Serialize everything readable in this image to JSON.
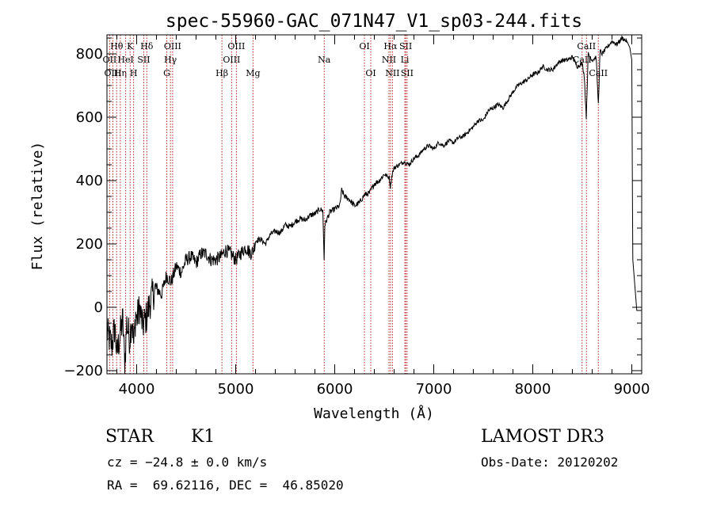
{
  "chart_data": {
    "type": "line",
    "title": "spec-55960-GAC_071N47_V1_sp03-244.fits",
    "xlabel": "Wavelength (Å)",
    "ylabel": "Flux (relative)",
    "xlim": [
      3700,
      9100
    ],
    "ylim": [
      -210,
      860
    ],
    "x_ticks": [
      4000,
      5000,
      6000,
      7000,
      8000,
      9000
    ],
    "x_tick_labels": [
      "4000",
      "5000",
      "6000",
      "7000",
      "8000",
      "9000"
    ],
    "y_ticks": [
      -200,
      0,
      200,
      400,
      600,
      800
    ],
    "y_tick_labels": [
      "−200",
      "0",
      "200",
      "400",
      "600",
      "800"
    ],
    "series": [
      {
        "name": "spectrum",
        "x": [
          3700,
          3750,
          3780,
          3800,
          3830,
          3860,
          3880,
          3900,
          3930,
          3950,
          3970,
          3990,
          4000,
          4030,
          4060,
          4100,
          4130,
          4160,
          4200,
          4250,
          4300,
          4350,
          4400,
          4450,
          4500,
          4550,
          4600,
          4650,
          4700,
          4750,
          4800,
          4850,
          4900,
          4950,
          5000,
          5050,
          5100,
          5150,
          5180,
          5200,
          5250,
          5300,
          5350,
          5400,
          5450,
          5500,
          5550,
          5600,
          5650,
          5700,
          5750,
          5800,
          5850,
          5880,
          5893,
          5900,
          5950,
          6000,
          6050,
          6070,
          6100,
          6150,
          6200,
          6250,
          6300,
          6350,
          6400,
          6450,
          6500,
          6550,
          6562,
          6580,
          6600,
          6650,
          6700,
          6750,
          6800,
          6850,
          6900,
          6950,
          7000,
          7050,
          7100,
          7150,
          7200,
          7250,
          7300,
          7350,
          7400,
          7450,
          7500,
          7550,
          7600,
          7650,
          7700,
          7750,
          7800,
          7850,
          7900,
          7950,
          8000,
          8050,
          8100,
          8150,
          8200,
          8250,
          8300,
          8350,
          8400,
          8450,
          8500,
          8520,
          8540,
          8560,
          8580,
          8600,
          8640,
          8662,
          8680,
          8700,
          8750,
          8800,
          8850,
          8900,
          8950,
          8980,
          9000,
          9010,
          9050,
          9100
        ],
        "y": [
          -80,
          -120,
          -60,
          -150,
          -90,
          -40,
          -180,
          -50,
          -100,
          -30,
          -120,
          -20,
          -40,
          0,
          -60,
          -30,
          10,
          40,
          60,
          40,
          100,
          80,
          130,
          110,
          150,
          160,
          140,
          170,
          170,
          150,
          150,
          160,
          180,
          170,
          150,
          170,
          190,
          170,
          180,
          210,
          215,
          200,
          230,
          240,
          235,
          260,
          255,
          270,
          280,
          275,
          290,
          295,
          310,
          305,
          150,
          260,
          300,
          310,
          320,
          370,
          350,
          340,
          320,
          330,
          355,
          360,
          390,
          400,
          420,
          410,
          380,
          420,
          440,
          450,
          460,
          450,
          470,
          480,
          500,
          510,
          500,
          520,
          510,
          525,
          520,
          535,
          540,
          555,
          570,
          590,
          590,
          620,
          630,
          640,
          630,
          655,
          680,
          700,
          710,
          720,
          735,
          740,
          760,
          750,
          750,
          770,
          780,
          780,
          790,
          760,
          770,
          730,
          600,
          800,
          790,
          780,
          790,
          640,
          810,
          800,
          820,
          840,
          830,
          850,
          840,
          820,
          780,
          150,
          -10,
          -10
        ],
        "color": "#000000"
      }
    ],
    "line_markers": [
      {
        "label": "Hθ",
        "wavelength": 3798,
        "row": 1
      },
      {
        "label": "OII",
        "wavelength": 3727,
        "row": 2
      },
      {
        "label": "OIII",
        "wavelength": 3760,
        "row": 3
      },
      {
        "label": "Hη",
        "wavelength": 3835,
        "row": 3
      },
      {
        "label": "HeI",
        "wavelength": 3889,
        "row": 2
      },
      {
        "label": "K",
        "wavelength": 3934,
        "row": 1
      },
      {
        "label": "H",
        "wavelength": 3969,
        "row": 3
      },
      {
        "label": "SII",
        "wavelength": 4072,
        "row": 2
      },
      {
        "label": "Hδ",
        "wavelength": 4102,
        "row": 1
      },
      {
        "label": "G",
        "wavelength": 4304,
        "row": 3
      },
      {
        "label": "Hγ",
        "wavelength": 4341,
        "row": 2
      },
      {
        "label": "OIII",
        "wavelength": 4363,
        "row": 1
      },
      {
        "label": "Hβ",
        "wavelength": 4861,
        "row": 3
      },
      {
        "label": "OIII",
        "wavelength": 4959,
        "row": 2
      },
      {
        "label": "OIII",
        "wavelength": 5007,
        "row": 1
      },
      {
        "label": "Mg",
        "wavelength": 5175,
        "row": 3
      },
      {
        "label": "Na",
        "wavelength": 5894,
        "row": 2
      },
      {
        "label": "OI",
        "wavelength": 6300,
        "row": 1
      },
      {
        "label": "OI",
        "wavelength": 6364,
        "row": 3
      },
      {
        "label": "NII",
        "wavelength": 6548,
        "row": 2
      },
      {
        "label": "Hα",
        "wavelength": 6563,
        "row": 1
      },
      {
        "label": "NII",
        "wavelength": 6583,
        "row": 3
      },
      {
        "label": "Li",
        "wavelength": 6708,
        "row": 2
      },
      {
        "label": "SII",
        "wavelength": 6717,
        "row": 1
      },
      {
        "label": "SII",
        "wavelength": 6731,
        "row": 3
      },
      {
        "label": "CaII",
        "wavelength": 8498,
        "row": 2
      },
      {
        "label": "CaII",
        "wavelength": 8542,
        "row": 1
      },
      {
        "label": "CaII",
        "wavelength": 8662,
        "row": 3
      }
    ],
    "marker_color": "#b22222"
  },
  "info": {
    "class_label": "STAR",
    "subclass": "K1",
    "survey": "LAMOST DR3",
    "cz": "cz = −24.8 ± 0.0 km/s",
    "obs_date": "Obs-Date: 20120202",
    "coords": "RA =  69.62116, DEC =  46.85020"
  }
}
